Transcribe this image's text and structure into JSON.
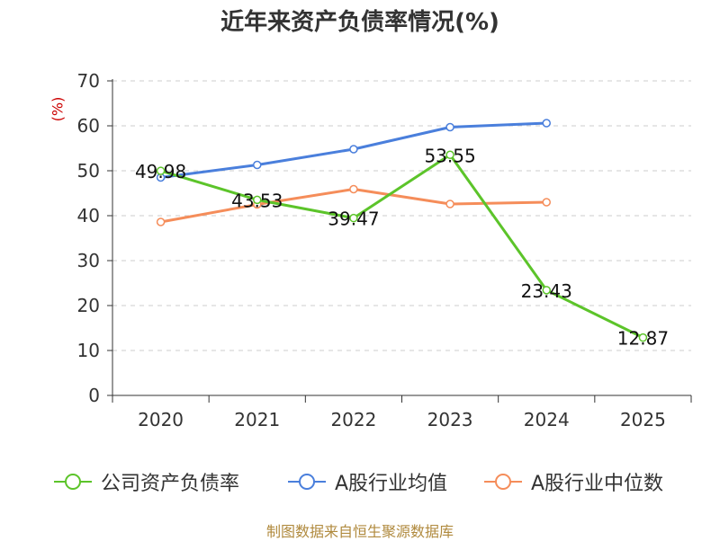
{
  "chart_data": {
    "type": "line",
    "title": "近年来资产负债率情况(%)",
    "ylabel": "(%)",
    "xlabel": "",
    "categories": [
      "2020",
      "2021",
      "2022",
      "2023",
      "2024",
      "2025"
    ],
    "ylim": [
      0,
      70
    ],
    "yticks": [
      0,
      10,
      20,
      30,
      40,
      50,
      60,
      70
    ],
    "grid": true,
    "legend_position": "bottom",
    "series": [
      {
        "name": "公司资产负债率",
        "color": "#5cc42a",
        "values": [
          49.98,
          43.53,
          39.47,
          53.55,
          23.43,
          12.87
        ],
        "labels": [
          "49.98",
          "43.53",
          "39.47",
          "53.55",
          "23.43",
          "12.87"
        ]
      },
      {
        "name": "A股行业均值",
        "color": "#4a7fdc",
        "values": [
          48.5,
          51.3,
          54.8,
          59.7,
          60.6,
          null
        ]
      },
      {
        "name": "A股行业中位数",
        "color": "#f58d5a",
        "values": [
          38.6,
          42.5,
          45.9,
          42.6,
          43.0,
          null
        ]
      }
    ]
  },
  "source": "制图数据来自恒生聚源数据库"
}
